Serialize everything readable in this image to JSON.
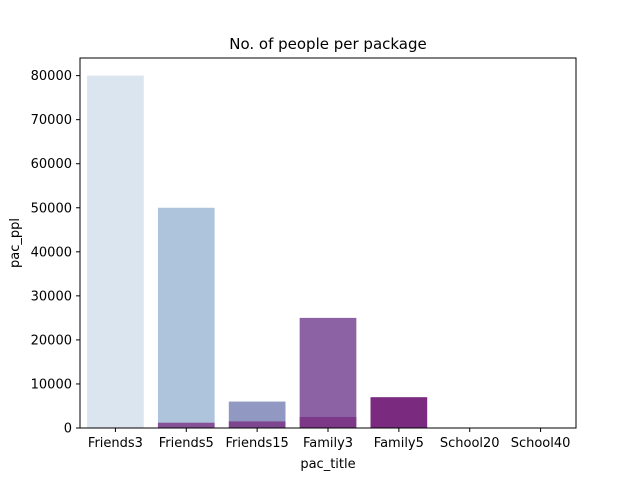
{
  "chart_data": {
    "type": "bar",
    "title": "No. of people per package",
    "xlabel": "pac_title",
    "ylabel": "pac_ppl",
    "categories": [
      "Friends3",
      "Friends5",
      "Friends15",
      "Family3",
      "Family5",
      "School20",
      "School40"
    ],
    "values": [
      80000,
      50000,
      6000,
      25000,
      7000,
      0,
      0
    ],
    "overlay_values": [
      0,
      1200,
      1500,
      2500,
      0,
      0,
      0
    ],
    "ylim": [
      0,
      80000
    ],
    "yticks": [
      0,
      10000,
      20000,
      30000,
      40000,
      50000,
      60000,
      70000,
      80000
    ],
    "grid": false,
    "colors": [
      "#dbe5ef",
      "#aec4dc",
      "#9199c2",
      "#8c62a5",
      "#7a2b7f",
      "#6b1570",
      "#5a0f5f"
    ],
    "overlay_color": "#7a2b7f",
    "overlay_opacity": 0.75
  }
}
